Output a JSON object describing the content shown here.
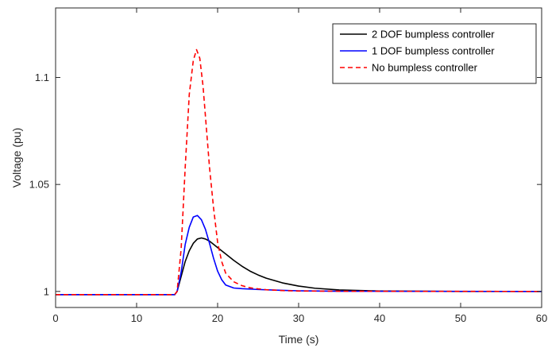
{
  "chart_data": {
    "type": "line",
    "title": "",
    "xlabel": "Time (s)",
    "ylabel": "Voltage (pu)",
    "xlim": [
      0,
      60
    ],
    "ylim": [
      0.9925,
      1.1325
    ],
    "x_ticks": [
      0,
      10,
      20,
      30,
      40,
      50,
      60
    ],
    "x_tick_labels": [
      "0",
      "10",
      "20",
      "30",
      "40",
      "50",
      "60"
    ],
    "y_ticks": [
      1.0,
      1.05,
      1.1
    ],
    "y_tick_labels": [
      "1",
      "1.05",
      "1.1"
    ],
    "grid": false,
    "legend_position": "top-right",
    "series": [
      {
        "name": "2 DOF bumpless controller",
        "color": "#000000",
        "style": "solid",
        "x": [
          0,
          14.7,
          15.0,
          15.5,
          16.0,
          16.5,
          17.0,
          17.5,
          18.0,
          18.5,
          19.0,
          19.5,
          20.0,
          21.0,
          22.0,
          23.0,
          24.0,
          25.0,
          26.0,
          28.0,
          30.0,
          32.0,
          35.0,
          40.0,
          50.0,
          60.0
        ],
        "y": [
          0.9985,
          0.9985,
          1.0,
          1.007,
          1.014,
          1.019,
          1.0225,
          1.0245,
          1.025,
          1.0245,
          1.0235,
          1.022,
          1.0205,
          1.0175,
          1.0145,
          1.0118,
          1.0095,
          1.0077,
          1.0062,
          1.004,
          1.0025,
          1.0015,
          1.0007,
          1.0002,
          1.0,
          1.0
        ]
      },
      {
        "name": "1 DOF bumpless controller",
        "color": "#0000ff",
        "style": "solid",
        "x": [
          0,
          14.7,
          15.0,
          15.5,
          16.0,
          16.5,
          17.0,
          17.5,
          18.0,
          18.5,
          19.0,
          19.5,
          20.0,
          20.5,
          21.0,
          22.0,
          23.0,
          25.0,
          28.0,
          30.0,
          35.0,
          60.0
        ],
        "y": [
          0.9985,
          0.9985,
          1.0,
          1.009,
          1.022,
          1.03,
          1.0348,
          1.0355,
          1.0335,
          1.029,
          1.0225,
          1.0155,
          1.0095,
          1.0055,
          1.003,
          1.0016,
          1.0013,
          1.0009,
          1.0005,
          1.0003,
          1.0001,
          1.0
        ]
      },
      {
        "name": "No bumpless controller",
        "color": "#ff0000",
        "style": "dashed",
        "x": [
          0,
          14.7,
          15.0,
          15.5,
          16.0,
          16.5,
          17.0,
          17.4,
          17.8,
          18.2,
          18.6,
          19.0,
          19.5,
          20.0,
          20.5,
          21.0,
          22.0,
          23.0,
          24.0,
          25.0,
          26.0,
          28.0,
          30.0,
          35.0,
          60.0
        ],
        "y": [
          0.9985,
          0.9985,
          1.0,
          1.02,
          1.058,
          1.092,
          1.108,
          1.113,
          1.109,
          1.096,
          1.077,
          1.058,
          1.039,
          1.023,
          1.014,
          1.0085,
          1.0045,
          1.0027,
          1.0017,
          1.0012,
          1.0008,
          1.0004,
          1.0002,
          1.0001,
          1.0
        ]
      }
    ]
  }
}
